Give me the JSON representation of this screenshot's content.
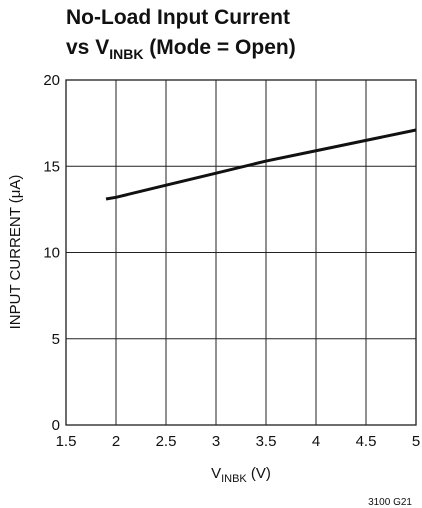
{
  "chart_data": {
    "type": "line",
    "title": {
      "line1": "No-Load Input Current",
      "line2": [
        "vs V",
        "INBK",
        " (Mode = Open)"
      ]
    },
    "x_label": [
      "V",
      "INBK",
      " (V)"
    ],
    "y_label": "INPUT CURRENT (μA)",
    "note": "3100 G21",
    "x": [
      1.9,
      2,
      2.5,
      3,
      3.5,
      4,
      4.5,
      5
    ],
    "series": [
      {
        "name": null,
        "color": "#111111",
        "values": [
          13.1,
          13.2,
          13.9,
          14.6,
          15.3,
          15.9,
          16.5,
          17.1
        ]
      }
    ],
    "xlim": [
      1.5,
      5
    ],
    "xticks": [
      1.5,
      2,
      2.5,
      3,
      3.5,
      4,
      4.5,
      5
    ],
    "ylim": [
      0,
      20
    ],
    "yticks": [
      0,
      5,
      10,
      15,
      20
    ],
    "grid": true
  }
}
